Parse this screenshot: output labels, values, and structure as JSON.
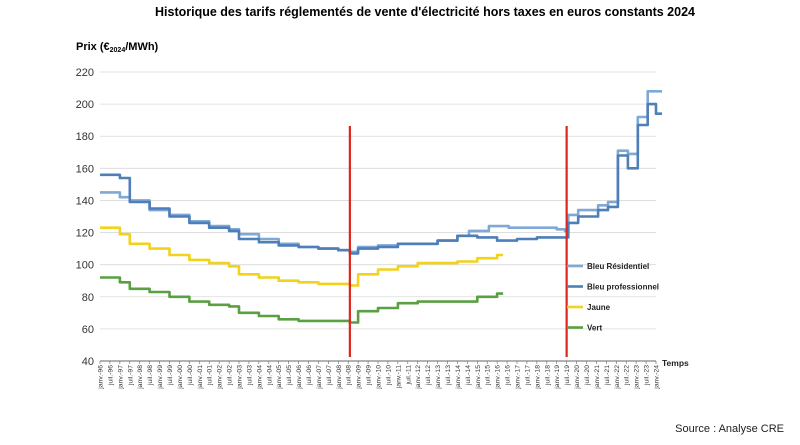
{
  "chart_data": {
    "type": "line",
    "title": "Historique des tarifs réglementés de vente d'électricité hors taxes en euros constants 2024",
    "ylabel_prefix": "Prix (€",
    "ylabel_sub": "2024",
    "ylabel_suffix": "/MWh)",
    "xlabel": "Temps",
    "source": "Source : Analyse CRE",
    "ylim": [
      40,
      220
    ],
    "yticks": [
      40,
      60,
      80,
      100,
      120,
      140,
      160,
      180,
      200,
      220
    ],
    "grid": "horizontal",
    "legend_position": "right",
    "xticks": [
      "janv.-96",
      "juil.-96",
      "janv.-97",
      "juil.-97",
      "janv.-98",
      "juil.-98",
      "janv.-99",
      "juil.-99",
      "janv.-00",
      "juil.-00",
      "janv.-01",
      "juil.-01",
      "janv.-02",
      "juil.-02",
      "janv.-03",
      "juil.-03",
      "janv.-04",
      "juil.-04",
      "janv.-05",
      "juil.-05",
      "janv.-06",
      "juil.-06",
      "janv.-07",
      "juil.-07",
      "janv.-08",
      "juil.-08",
      "janv.-09",
      "juil.-09",
      "janv.-10",
      "juil.-10",
      "janv.-11",
      "juil.-11",
      "janv.-12",
      "juil.-12",
      "janv.-13",
      "juil.-13",
      "janv.-14",
      "juil.-14",
      "janv.-15",
      "juil.-15",
      "janv.-16",
      "juil.-16",
      "janv.-17",
      "juil.-17",
      "janv.-18",
      "juil.-18",
      "janv.-19",
      "juil.-19",
      "janv.-20",
      "juil.-20",
      "janv.-21",
      "juil.-21",
      "janv.-22",
      "juil.-22",
      "janv.-23",
      "juil.-23",
      "janv.-24"
    ],
    "vertical_markers": [
      "2008-08",
      "2019-07"
    ],
    "series": [
      {
        "name": "Bleu Résidentiel",
        "color": "#7fa8d6",
        "points": [
          [
            "1996-01",
            145
          ],
          [
            "1997-01",
            142
          ],
          [
            "1997-07",
            140
          ],
          [
            "1998-07",
            134
          ],
          [
            "1999-07",
            131
          ],
          [
            "2000-07",
            127
          ],
          [
            "2001-07",
            124
          ],
          [
            "2002-07",
            122
          ],
          [
            "2003-01",
            119
          ],
          [
            "2004-01",
            116
          ],
          [
            "2005-01",
            113
          ],
          [
            "2006-01",
            111
          ],
          [
            "2007-01",
            110
          ],
          [
            "2008-01",
            109
          ],
          [
            "2008-08",
            108
          ],
          [
            "2009-01",
            111
          ],
          [
            "2010-01",
            112
          ],
          [
            "2011-01",
            113
          ],
          [
            "2012-01",
            113
          ],
          [
            "2013-01",
            115
          ],
          [
            "2014-01",
            118
          ],
          [
            "2014-08",
            121
          ],
          [
            "2015-08",
            124
          ],
          [
            "2016-08",
            123
          ],
          [
            "2017-08",
            123
          ],
          [
            "2018-08",
            123
          ],
          [
            "2019-01",
            122
          ],
          [
            "2019-06",
            121
          ],
          [
            "2019-08",
            131
          ],
          [
            "2020-02",
            134
          ],
          [
            "2021-02",
            137
          ],
          [
            "2021-08",
            139
          ],
          [
            "2022-02",
            171
          ],
          [
            "2022-08",
            169
          ],
          [
            "2023-02",
            192
          ],
          [
            "2023-08",
            208
          ],
          [
            "2024-01",
            208
          ]
        ]
      },
      {
        "name": "Bleu professionnel",
        "color": "#4f7fb8",
        "points": [
          [
            "1996-01",
            156
          ],
          [
            "1997-01",
            154
          ],
          [
            "1997-07",
            139
          ],
          [
            "1998-07",
            135
          ],
          [
            "1999-07",
            130
          ],
          [
            "2000-07",
            126
          ],
          [
            "2001-07",
            123
          ],
          [
            "2002-07",
            121
          ],
          [
            "2003-01",
            116
          ],
          [
            "2004-01",
            114
          ],
          [
            "2005-01",
            112
          ],
          [
            "2006-01",
            111
          ],
          [
            "2007-01",
            110
          ],
          [
            "2008-01",
            109
          ],
          [
            "2008-08",
            107
          ],
          [
            "2009-01",
            110
          ],
          [
            "2010-01",
            111
          ],
          [
            "2011-01",
            113
          ],
          [
            "2012-01",
            113
          ],
          [
            "2013-01",
            115
          ],
          [
            "2014-01",
            118
          ],
          [
            "2015-01",
            117
          ],
          [
            "2016-01",
            115
          ],
          [
            "2017-01",
            116
          ],
          [
            "2018-01",
            117
          ],
          [
            "2019-01",
            117
          ],
          [
            "2019-06",
            117
          ],
          [
            "2019-08",
            126
          ],
          [
            "2020-02",
            130
          ],
          [
            "2021-02",
            134
          ],
          [
            "2021-08",
            136
          ],
          [
            "2022-02",
            168
          ],
          [
            "2022-08",
            160
          ],
          [
            "2023-02",
            187
          ],
          [
            "2023-08",
            200
          ],
          [
            "2024-01",
            194
          ]
        ]
      },
      {
        "name": "Jaune",
        "color": "#f2d21a",
        "points": [
          [
            "1996-01",
            123
          ],
          [
            "1997-01",
            119
          ],
          [
            "1997-07",
            113
          ],
          [
            "1998-07",
            110
          ],
          [
            "1999-07",
            106
          ],
          [
            "2000-07",
            103
          ],
          [
            "2001-07",
            101
          ],
          [
            "2002-07",
            99
          ],
          [
            "2003-01",
            94
          ],
          [
            "2004-01",
            92
          ],
          [
            "2005-01",
            90
          ],
          [
            "2006-01",
            89
          ],
          [
            "2007-01",
            88
          ],
          [
            "2008-01",
            88
          ],
          [
            "2008-08",
            87
          ],
          [
            "2009-01",
            94
          ],
          [
            "2010-01",
            97
          ],
          [
            "2011-01",
            99
          ],
          [
            "2012-01",
            101
          ],
          [
            "2013-01",
            101
          ],
          [
            "2014-01",
            102
          ],
          [
            "2015-01",
            104
          ],
          [
            "2016-01",
            106
          ]
        ]
      },
      {
        "name": "Vert",
        "color": "#5aa043",
        "points": [
          [
            "1996-01",
            92
          ],
          [
            "1997-01",
            89
          ],
          [
            "1997-07",
            85
          ],
          [
            "1998-07",
            83
          ],
          [
            "1999-07",
            80
          ],
          [
            "2000-07",
            77
          ],
          [
            "2001-07",
            75
          ],
          [
            "2002-07",
            74
          ],
          [
            "2003-01",
            70
          ],
          [
            "2004-01",
            68
          ],
          [
            "2005-01",
            66
          ],
          [
            "2006-01",
            65
          ],
          [
            "2007-01",
            65
          ],
          [
            "2008-01",
            65
          ],
          [
            "2008-08",
            64
          ],
          [
            "2009-01",
            71
          ],
          [
            "2010-01",
            73
          ],
          [
            "2011-01",
            76
          ],
          [
            "2012-01",
            77
          ],
          [
            "2013-01",
            77
          ],
          [
            "2014-01",
            77
          ],
          [
            "2015-01",
            80
          ],
          [
            "2016-01",
            82
          ]
        ]
      }
    ]
  }
}
